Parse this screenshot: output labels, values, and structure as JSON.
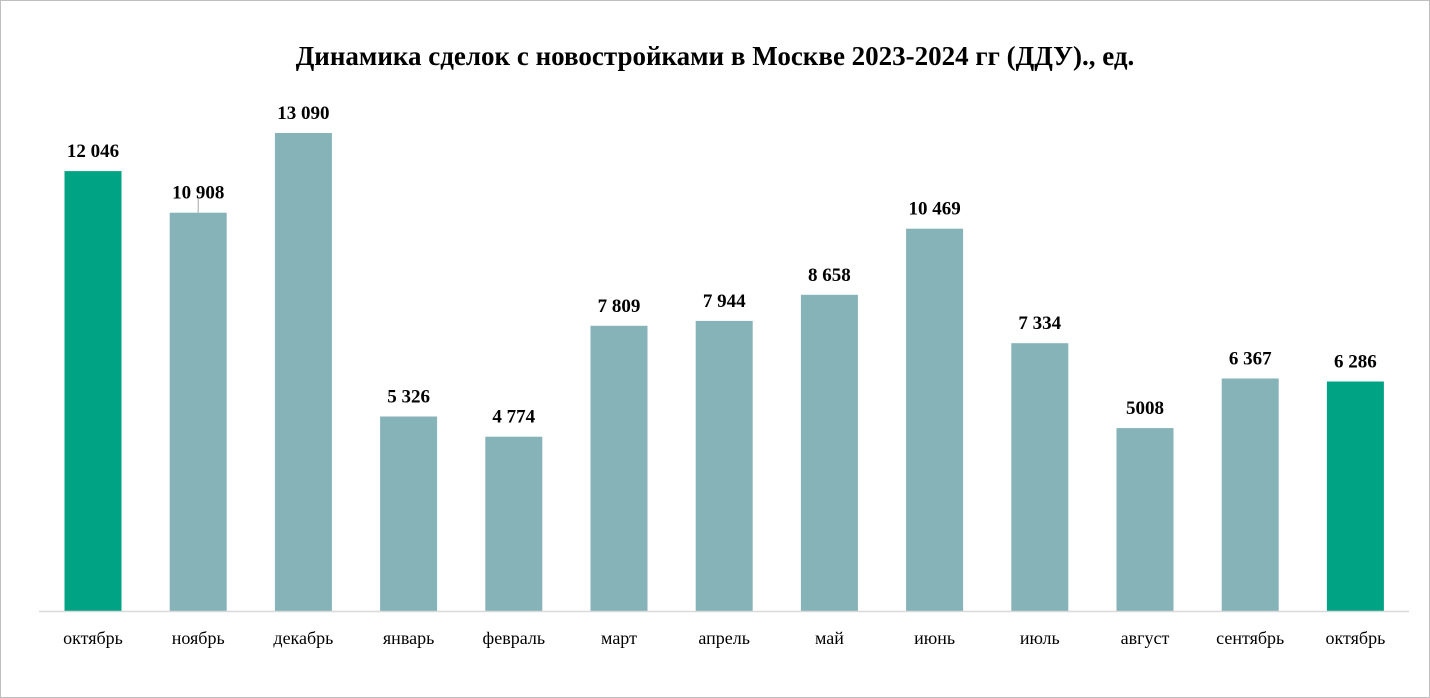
{
  "chart_data": {
    "type": "bar",
    "title": "Динамика сделок с новостройками в Москве 2023-2024 гг (ДДУ)., ед.",
    "xlabel": "",
    "ylabel": "",
    "ylim": [
      0,
      13500
    ],
    "grid": false,
    "legend": "none",
    "categories": [
      "октябрь",
      "ноябрь",
      "декабрь",
      "январь",
      "февраль",
      "март",
      "апрель",
      "май",
      "июнь",
      "июль",
      "август",
      "сентябрь",
      "октябрь"
    ],
    "values": [
      12046,
      10908,
      13090,
      5326,
      4774,
      7809,
      7944,
      8658,
      10469,
      7334,
      5008,
      6367,
      6286
    ],
    "value_labels": [
      "12 046",
      "10 908",
      "13 090",
      "5 326",
      "4 774",
      "7 809",
      "7 944",
      "8 658",
      "10 469",
      "7 334",
      "5008",
      "6 367",
      "6 286"
    ],
    "highlighted": [
      0,
      12
    ],
    "colors": {
      "bar": "#85b3b8",
      "highlight": "#00a383",
      "axis": "#d9d9d9"
    }
  }
}
